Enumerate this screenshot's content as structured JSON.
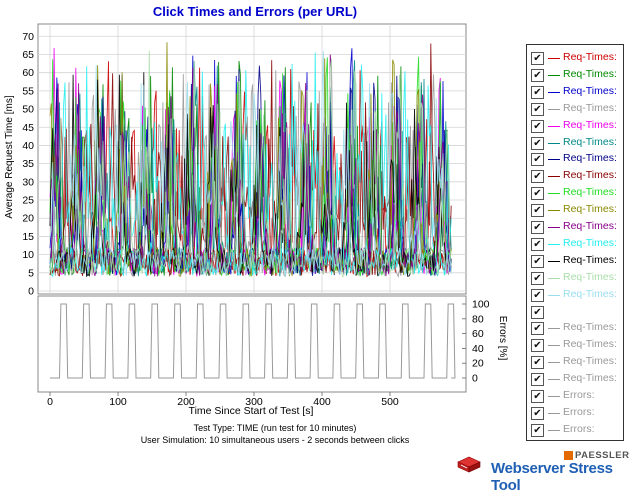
{
  "chart_data": {
    "type": "line",
    "title": "Click Times and Errors (per URL)",
    "xlabel": "Time Since Start of Test [s]",
    "xlim": [
      0,
      600
    ],
    "x_ticks": [
      0,
      100,
      200,
      300,
      400,
      500
    ],
    "top_panel": {
      "ylabel": "Average Request Time [ms]",
      "ylim": [
        0,
        72
      ],
      "y_ticks": [
        0,
        5,
        10,
        15,
        20,
        25,
        30,
        35,
        40,
        45,
        50,
        55,
        60,
        65,
        70
      ],
      "grid": true
    },
    "bottom_panel": {
      "ylabel": "Errors [%]",
      "ylim": [
        0,
        100
      ],
      "y_ticks": [
        0,
        20,
        40,
        60,
        80,
        100
      ],
      "error_cycle": {
        "period_s": 33.5,
        "first_peak_s": 20,
        "peak_width_s": 12,
        "peak_percent": 100,
        "base_percent": 0,
        "x_end_s": 590
      }
    },
    "legend": {
      "placement": "right",
      "items": [
        {
          "label": "Req-Times:",
          "color": "#cc0000",
          "checked": true
        },
        {
          "label": "Req-Times:",
          "color": "#008800",
          "checked": true
        },
        {
          "label": "Req-Times:",
          "color": "#0000cc",
          "checked": true
        },
        {
          "label": "Req-Times:",
          "color": "#999999",
          "checked": true
        },
        {
          "label": "Req-Times:",
          "color": "#ee00ee",
          "checked": true
        },
        {
          "label": "Req-Times:",
          "color": "#008888",
          "checked": true
        },
        {
          "label": "Req-Times:",
          "color": "#000088",
          "checked": true
        },
        {
          "label": "Req-Times:",
          "color": "#880000",
          "checked": true
        },
        {
          "label": "Req-Times:",
          "color": "#22dd22",
          "checked": true
        },
        {
          "label": "Req-Times:",
          "color": "#888800",
          "checked": true
        },
        {
          "label": "Req-Times:",
          "color": "#880088",
          "checked": true
        },
        {
          "label": "Req-Times:",
          "color": "#22eeee",
          "checked": true
        },
        {
          "label": "Req-Times:",
          "color": "#000000",
          "checked": true
        },
        {
          "label": "Req-Times:",
          "color": "#aaddaa",
          "checked": true
        },
        {
          "label": "Req-Times:",
          "color": "#99ddee",
          "checked": true
        },
        {
          "label": "",
          "color": "",
          "checked": true
        },
        {
          "label": "Req-Times:",
          "color": "#999999",
          "checked": true
        },
        {
          "label": "Req-Times:",
          "color": "#999999",
          "checked": true
        },
        {
          "label": "Req-Times:",
          "color": "#999999",
          "checked": true
        },
        {
          "label": "Req-Times:",
          "color": "#999999",
          "checked": true
        },
        {
          "label": "Errors:",
          "color": "#999999",
          "checked": true
        },
        {
          "label": "Errors:",
          "color": "#999999",
          "checked": true
        },
        {
          "label": "Errors:",
          "color": "#999999",
          "checked": true
        }
      ]
    }
  },
  "info": {
    "test_type": "Test Type: TIME (run test for 10 minutes)",
    "user_sim": "User Simulation: 10 simultaneous users - 2 seconds between clicks"
  },
  "brand": {
    "company": "PAESSLER",
    "product": "Webserver Stress Tool"
  }
}
